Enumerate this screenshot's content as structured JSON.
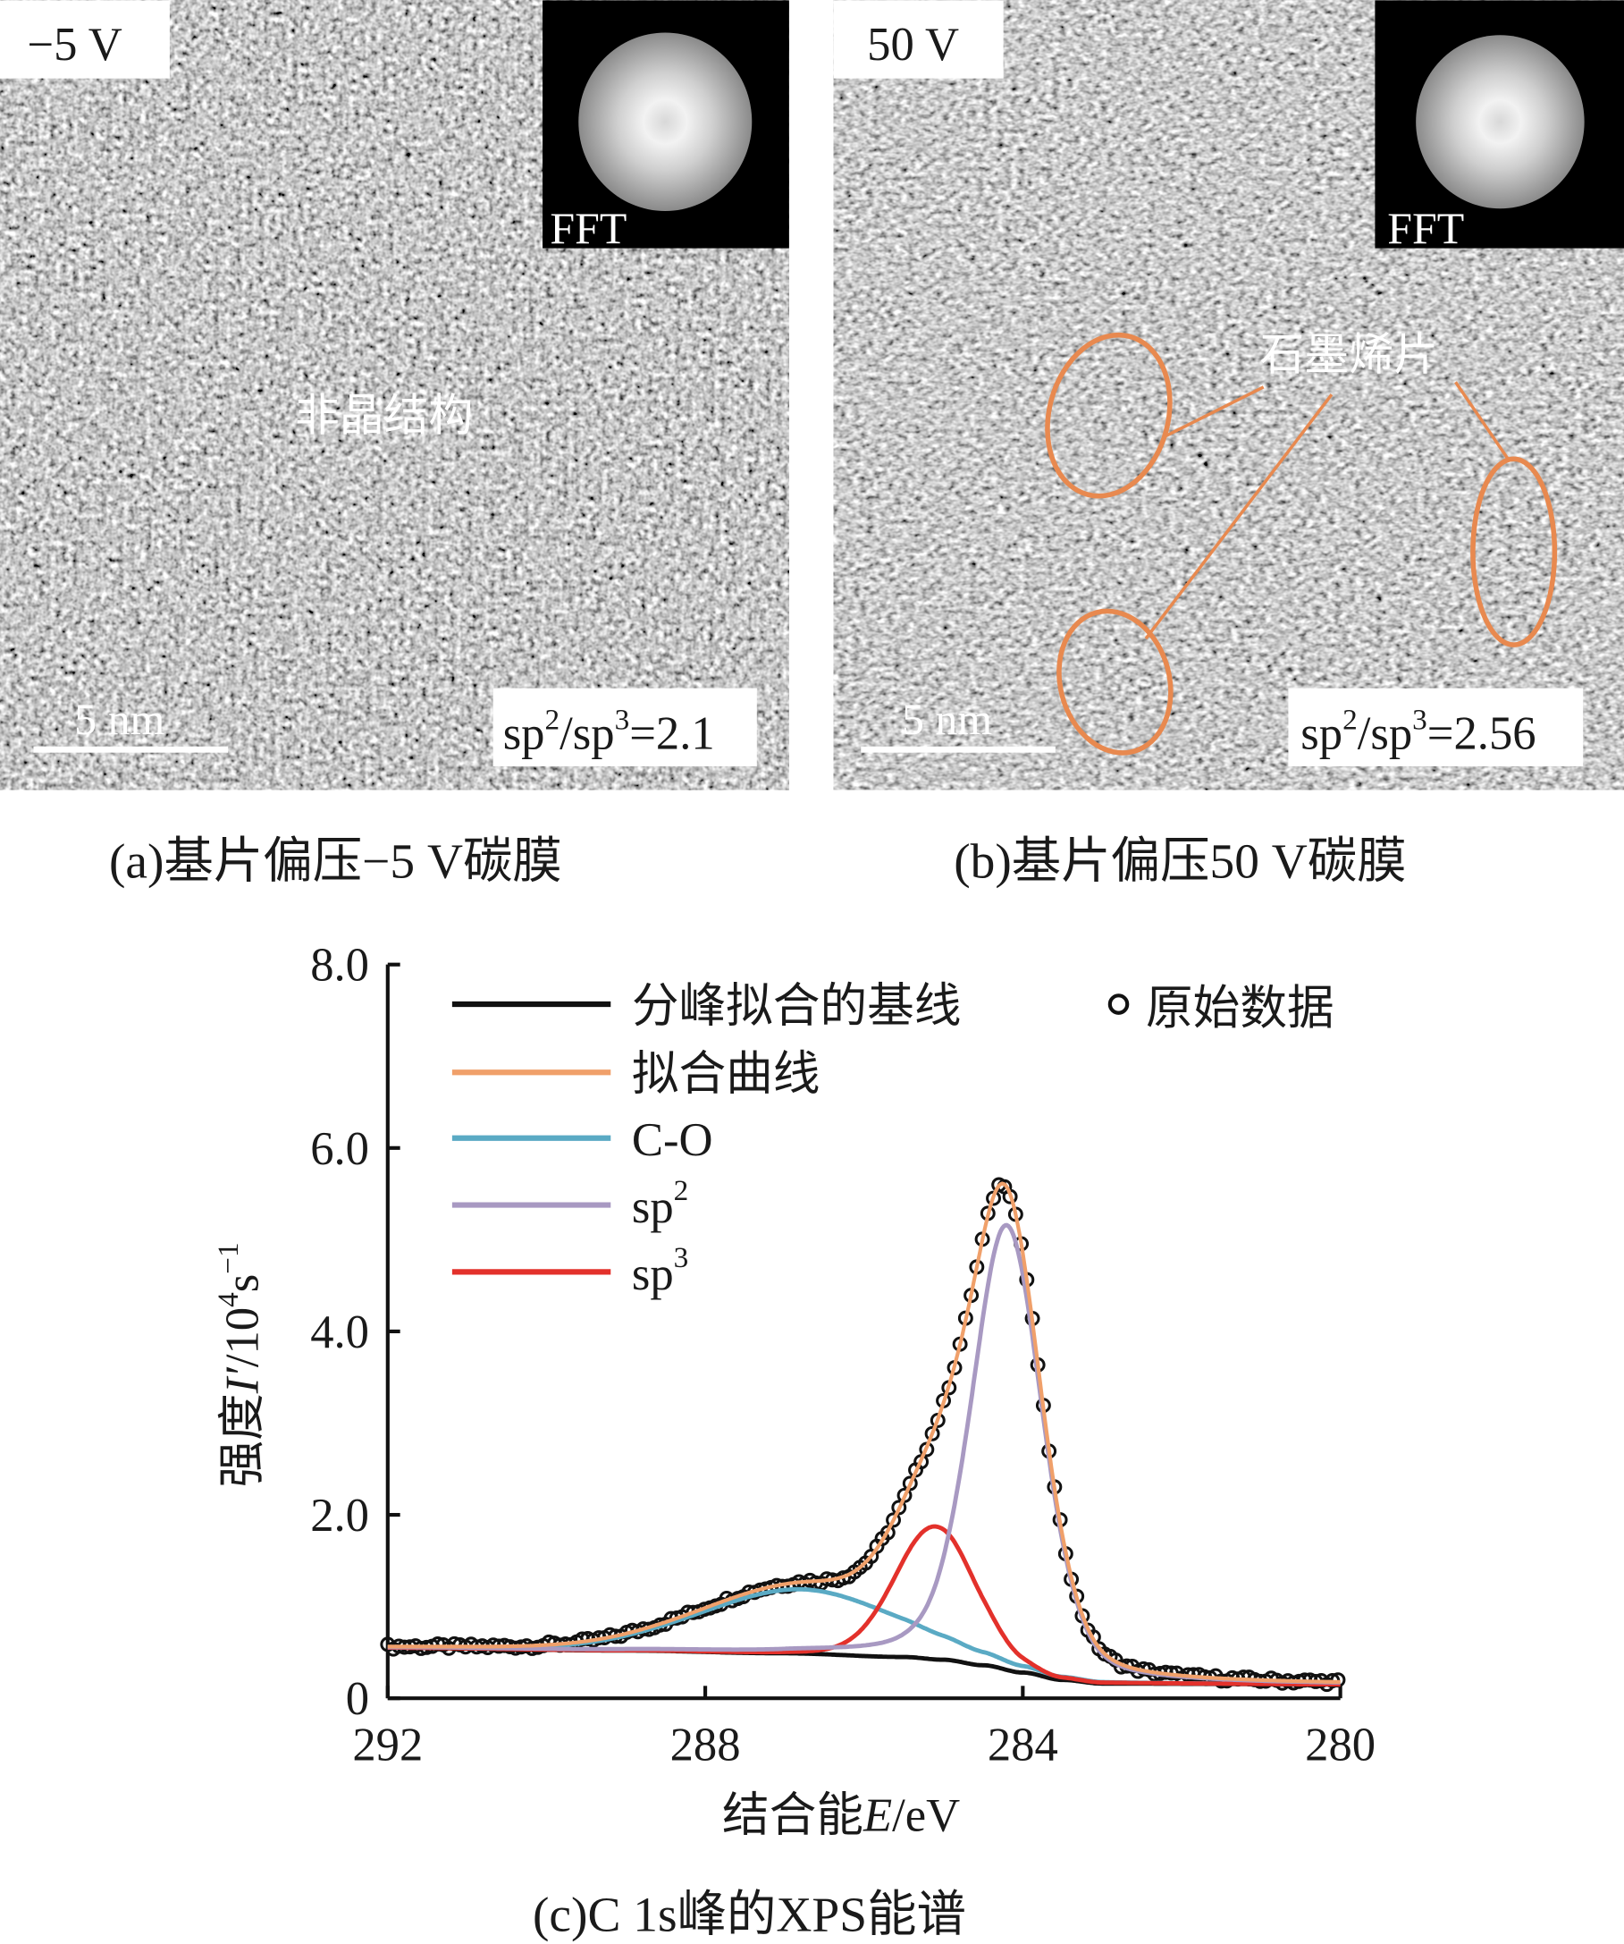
{
  "panels": [
    {
      "id": "a",
      "bias_label": "−5 V",
      "fft_label": "FFT",
      "annotation": "非晶结构",
      "scale_bar": "5 nm",
      "ratio": {
        "sp": "sp",
        "sup2": "2",
        "slash": "/sp",
        "sup3": "3",
        "value": "=2.1"
      },
      "caption": "(a)基片偏压−5 V碳膜"
    },
    {
      "id": "b",
      "bias_label": "50 V",
      "fft_label": "FFT",
      "annotation": "石墨烯片",
      "scale_bar": "5 nm",
      "ratio": {
        "sp": "sp",
        "sup2": "2",
        "slash": "/sp",
        "sup3": "3",
        "value": "=2.56"
      },
      "caption": "(b)基片偏压50 V碳膜"
    }
  ],
  "colors": {
    "highlight": "#e8894f",
    "baseline": "#111111",
    "fit": "#f0a06a",
    "co": "#5aaac4",
    "sp2": "#a899c2",
    "sp3": "#e3312b"
  },
  "chart_data": {
    "type": "line",
    "title": "(c)C 1s峰的XPS能谱",
    "xlabel": "结合能E/eV",
    "xlabel_parts": {
      "pre": "结合能",
      "italic": "E",
      "post": "/eV"
    },
    "ylabel_parts": {
      "pre": "强度",
      "italic": "I′",
      "mid": "/10",
      "sup1": "4",
      "s": "s",
      "sup2": "−1"
    },
    "xlim": [
      292,
      280
    ],
    "ylim": [
      0,
      8
    ],
    "xticks": [
      "292",
      "288",
      "284",
      "280"
    ],
    "xtick_values": [
      292,
      288,
      284,
      280
    ],
    "yticks": [
      "0",
      "2.0",
      "4.0",
      "6.0",
      "8.0"
    ],
    "ytick_values": [
      0,
      2,
      4,
      6,
      8
    ],
    "grid": false,
    "legend_position": "top",
    "legend": [
      {
        "key": "baseline",
        "label": "分峰拟合的基线"
      },
      {
        "key": "fit",
        "label": "拟合曲线"
      },
      {
        "key": "co",
        "label": "C-O"
      },
      {
        "key": "sp2",
        "label": "sp",
        "sup": "2"
      },
      {
        "key": "sp3",
        "label": "sp",
        "sup": "3"
      },
      {
        "key": "raw",
        "label": "原始数据"
      }
    ],
    "baseline_points": [
      [
        292,
        0.55
      ],
      [
        289,
        0.52
      ],
      [
        287,
        0.49
      ],
      [
        285.5,
        0.45
      ],
      [
        285,
        0.42
      ],
      [
        284.5,
        0.36
      ],
      [
        284,
        0.28
      ],
      [
        283.5,
        0.2
      ],
      [
        283,
        0.16
      ],
      [
        280,
        0.15
      ]
    ],
    "components": [
      {
        "key": "co",
        "name": "C-O",
        "center": 286.8,
        "height": 0.7,
        "fwhm": 3.0,
        "lorentz_fraction": 0.1
      },
      {
        "key": "sp3",
        "name": "sp3",
        "center": 285.1,
        "height": 1.45,
        "fwhm": 1.2,
        "lorentz_fraction": 0.1
      },
      {
        "key": "sp2",
        "name": "sp2",
        "center": 284.2,
        "height": 4.85,
        "fwhm": 1.05,
        "lorentz_fraction": 0.3
      }
    ],
    "peak_raw_value": 5.85,
    "peak_raw_position": 284.2
  }
}
